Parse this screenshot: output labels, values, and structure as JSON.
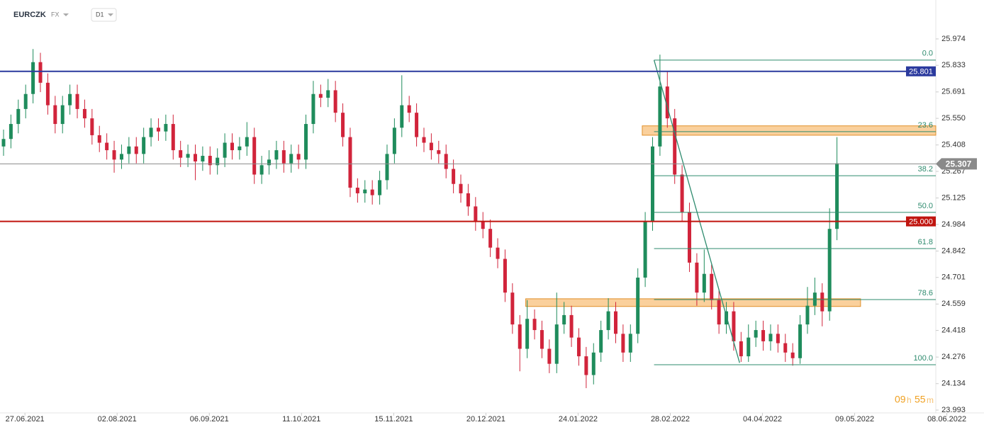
{
  "header": {
    "symbol": "EURCZK",
    "market": "FX",
    "interval": "D1"
  },
  "chart_data": {
    "type": "candlestick",
    "open": [
      25.4,
      25.44,
      25.52,
      25.6,
      25.68,
      25.85,
      25.74,
      25.62,
      25.52,
      25.62,
      25.68,
      25.6,
      25.55,
      25.46,
      25.42,
      25.38,
      25.33,
      25.36,
      25.4,
      25.36,
      25.45,
      25.5,
      25.48,
      25.52,
      25.38,
      25.34,
      25.36,
      25.32,
      25.35,
      25.3,
      25.34,
      25.42,
      25.38,
      25.4,
      25.45,
      25.25,
      25.3,
      25.33,
      25.38,
      25.31,
      25.36,
      25.33,
      25.52,
      25.68,
      25.66,
      25.7,
      25.58,
      25.45,
      25.18,
      25.15,
      25.17,
      25.14,
      25.22,
      25.36,
      25.5,
      25.62,
      25.58,
      25.45,
      25.42,
      25.38,
      25.36,
      25.28,
      25.2,
      25.15,
      25.08,
      25.0,
      24.96,
      24.86,
      24.8,
      24.62,
      24.45,
      24.32,
      24.48,
      24.42,
      24.32,
      24.24,
      24.45,
      24.5,
      24.38,
      24.28,
      24.18,
      24.3,
      24.42,
      24.52,
      24.4,
      24.3,
      24.4,
      24.7,
      25.0,
      25.4,
      25.72,
      25.55,
      25.25,
      25.05,
      24.78,
      24.62,
      24.72,
      24.58,
      24.45,
      24.52,
      24.36,
      24.28,
      24.38,
      24.42,
      24.36,
      24.4,
      24.35,
      24.3,
      24.27,
      24.45,
      24.55,
      24.62,
      24.52,
      24.96
    ],
    "high": [
      25.49,
      25.57,
      25.65,
      25.73,
      25.92,
      25.9,
      25.79,
      25.67,
      25.67,
      25.73,
      25.73,
      25.65,
      25.6,
      25.51,
      25.47,
      25.43,
      25.41,
      25.45,
      25.45,
      25.5,
      25.55,
      25.55,
      25.57,
      25.57,
      25.43,
      25.41,
      25.41,
      25.4,
      25.4,
      25.39,
      25.47,
      25.47,
      25.45,
      25.53,
      25.5,
      25.35,
      25.38,
      25.43,
      25.43,
      25.41,
      25.41,
      25.57,
      25.75,
      25.73,
      25.76,
      25.75,
      25.63,
      25.5,
      25.23,
      25.22,
      25.22,
      25.27,
      25.41,
      25.55,
      25.78,
      25.67,
      25.63,
      25.5,
      25.47,
      25.43,
      25.41,
      25.33,
      25.25,
      25.2,
      25.13,
      25.05,
      25.01,
      24.91,
      24.85,
      24.67,
      24.5,
      24.58,
      24.53,
      24.47,
      24.37,
      24.62,
      24.57,
      24.55,
      24.43,
      24.33,
      24.35,
      24.47,
      24.59,
      24.57,
      24.45,
      24.45,
      24.75,
      25.05,
      25.45,
      25.89,
      25.8,
      25.6,
      25.3,
      25.1,
      24.83,
      24.85,
      24.77,
      24.63,
      24.57,
      24.57,
      24.41,
      24.45,
      24.47,
      24.47,
      24.45,
      24.45,
      24.4,
      24.35,
      24.5,
      24.65,
      24.7,
      24.67,
      25.07,
      25.45
    ],
    "low": [
      25.35,
      25.39,
      25.47,
      25.55,
      25.63,
      25.69,
      25.57,
      25.47,
      25.47,
      25.57,
      25.55,
      25.5,
      25.41,
      25.37,
      25.33,
      25.26,
      25.28,
      25.31,
      25.31,
      25.31,
      25.4,
      25.43,
      25.43,
      25.33,
      25.29,
      25.29,
      25.22,
      25.27,
      25.25,
      25.25,
      25.29,
      25.33,
      25.33,
      25.35,
      25.2,
      25.2,
      25.25,
      25.28,
      25.26,
      25.26,
      25.28,
      25.28,
      25.47,
      25.61,
      25.61,
      25.53,
      25.4,
      25.13,
      25.1,
      25.1,
      25.09,
      25.09,
      25.17,
      25.31,
      25.45,
      25.53,
      25.4,
      25.37,
      25.33,
      25.31,
      25.23,
      25.15,
      25.1,
      25.03,
      24.95,
      24.91,
      24.81,
      24.75,
      24.57,
      24.4,
      24.2,
      24.27,
      24.37,
      24.27,
      24.19,
      24.19,
      24.4,
      24.33,
      24.23,
      24.11,
      24.13,
      24.25,
      24.37,
      24.35,
      24.25,
      24.25,
      24.35,
      24.65,
      24.95,
      25.35,
      25.5,
      25.2,
      25.0,
      24.73,
      24.55,
      24.57,
      24.53,
      24.4,
      24.4,
      24.31,
      24.25,
      24.25,
      24.33,
      24.31,
      24.31,
      24.3,
      24.25,
      24.23,
      24.24,
      24.4,
      24.5,
      24.44,
      24.47,
      24.9
    ],
    "close": [
      25.44,
      25.52,
      25.6,
      25.68,
      25.85,
      25.74,
      25.62,
      25.52,
      25.62,
      25.68,
      25.6,
      25.55,
      25.46,
      25.42,
      25.38,
      25.33,
      25.36,
      25.4,
      25.36,
      25.45,
      25.5,
      25.48,
      25.52,
      25.38,
      25.34,
      25.36,
      25.32,
      25.35,
      25.3,
      25.34,
      25.42,
      25.38,
      25.4,
      25.45,
      25.25,
      25.3,
      25.33,
      25.38,
      25.31,
      25.36,
      25.33,
      25.52,
      25.68,
      25.66,
      25.7,
      25.58,
      25.45,
      25.18,
      25.15,
      25.17,
      25.14,
      25.22,
      25.36,
      25.5,
      25.62,
      25.58,
      25.45,
      25.42,
      25.38,
      25.36,
      25.28,
      25.2,
      25.15,
      25.08,
      25.0,
      24.96,
      24.86,
      24.8,
      24.62,
      24.45,
      24.32,
      24.48,
      24.42,
      24.32,
      24.24,
      24.45,
      24.5,
      24.38,
      24.28,
      24.18,
      24.3,
      24.42,
      24.52,
      24.4,
      24.3,
      24.4,
      24.7,
      25.0,
      25.4,
      25.72,
      25.55,
      25.25,
      25.05,
      24.78,
      24.62,
      24.72,
      24.58,
      24.45,
      24.52,
      24.36,
      24.28,
      24.38,
      24.42,
      24.36,
      24.4,
      24.35,
      24.3,
      24.27,
      24.45,
      24.55,
      24.62,
      24.52,
      24.96,
      25.31
    ],
    "up_color": "#1f8c5c",
    "down_color": "#d1243b",
    "xlim": [
      -0.48,
      126.4
    ],
    "xticks": [
      {
        "value": 2.9,
        "label": "27.06.2021"
      },
      {
        "value": 15.4,
        "label": "02.08.2021"
      },
      {
        "value": 27.9,
        "label": "06.09.2021"
      },
      {
        "value": 40.4,
        "label": "11.10.2021"
      },
      {
        "value": 52.9,
        "label": "15.11.2021"
      },
      {
        "value": 65.4,
        "label": "20.12.2021"
      },
      {
        "value": 77.9,
        "label": "24.01.2022"
      },
      {
        "value": 90.4,
        "label": "28.02.2022"
      },
      {
        "value": 102.9,
        "label": "04.04.2022"
      },
      {
        "value": 115.4,
        "label": "09.05.2022"
      },
      {
        "value": 127.9,
        "label": "08.06.2022"
      }
    ],
    "ylim": [
      23.978,
      26.125
    ],
    "yticks": [
      25.974,
      25.833,
      25.691,
      {
        "value": 25.55,
        "label": "25.550"
      },
      25.408,
      25.267,
      25.125,
      24.984,
      24.842,
      24.701,
      24.559,
      24.418,
      24.276,
      24.134,
      23.993
    ],
    "hlines": [
      {
        "value": 25.801,
        "label": "25.801",
        "color": "#2b3a9e"
      },
      {
        "value": 25.0,
        "label": "25.000",
        "color": "#c0150f"
      }
    ],
    "last_price": {
      "value": 25.307,
      "label": "25.307",
      "color": "#8a8a8a"
    },
    "fib": {
      "x_start": 88.2,
      "color": "#2e8b6e",
      "levels": [
        {
          "value": 25.861,
          "label": "0.0"
        },
        {
          "value": 25.479,
          "label": "23.6"
        },
        {
          "value": 25.244,
          "label": "38.2"
        },
        {
          "value": 25.048,
          "label": "50.0"
        },
        {
          "value": 24.855,
          "label": "61.8"
        },
        {
          "value": 24.583,
          "label": "78.6"
        },
        {
          "value": 24.235,
          "label": "100.0"
        }
      ]
    },
    "zones": [
      {
        "from": 86.6,
        "to": 126.4,
        "low": 25.46,
        "high": 25.51
      },
      {
        "from": 70.8,
        "to": 116.2,
        "low": 24.546,
        "high": 24.587
      }
    ],
    "zone_color": "#f6a94a",
    "trendline": {
      "x": [
        88.2,
        99.8
      ],
      "y": [
        25.861,
        24.245
      ],
      "color": "#2e8b6e"
    }
  },
  "timer": {
    "hours": "09",
    "h": "h",
    "minutes": "55",
    "m": "m"
  }
}
